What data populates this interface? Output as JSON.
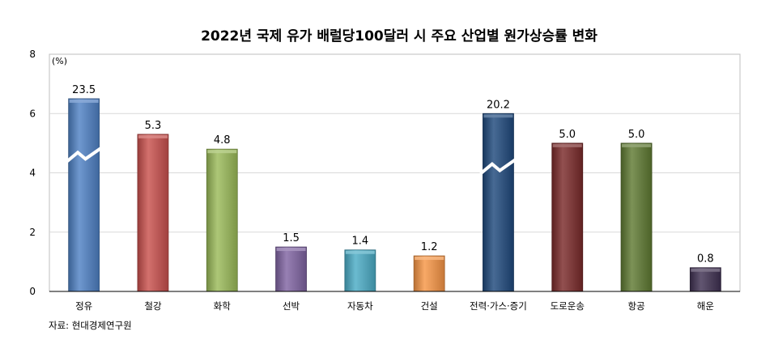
{
  "chart_data": {
    "type": "bar",
    "title": "2022년 국제 유가 배럴당100달러 시 주요 산업별 원가상승률 변화",
    "unit": "(%)",
    "ylim": [
      0,
      8
    ],
    "yticks": [
      "0",
      "2",
      "4",
      "6",
      "8"
    ],
    "grid": true,
    "categories": [
      "정유",
      "철강",
      "화학",
      "선박",
      "자동차",
      "건설",
      "전력·가스·증기",
      "도로운송",
      "항공",
      "해운"
    ],
    "values": [
      23.5,
      5.3,
      4.8,
      1.5,
      1.4,
      1.2,
      20.2,
      5.0,
      5.0,
      0.8
    ],
    "value_labels": [
      "23.5",
      "5.3",
      "4.8",
      "1.5",
      "1.4",
      "1.2",
      "20.2",
      "5.0",
      "5.0",
      "0.8"
    ],
    "axis_break": [
      true,
      false,
      false,
      false,
      false,
      false,
      true,
      false,
      false,
      false
    ],
    "colors": [
      "#4f81c4",
      "#c9504d",
      "#9bbb59",
      "#8064a2",
      "#4bacc6",
      "#f79646",
      "#1f497d",
      "#7a2a2a",
      "#5f7a32",
      "#403152"
    ],
    "source": "자료: 현대경제연구원"
  }
}
